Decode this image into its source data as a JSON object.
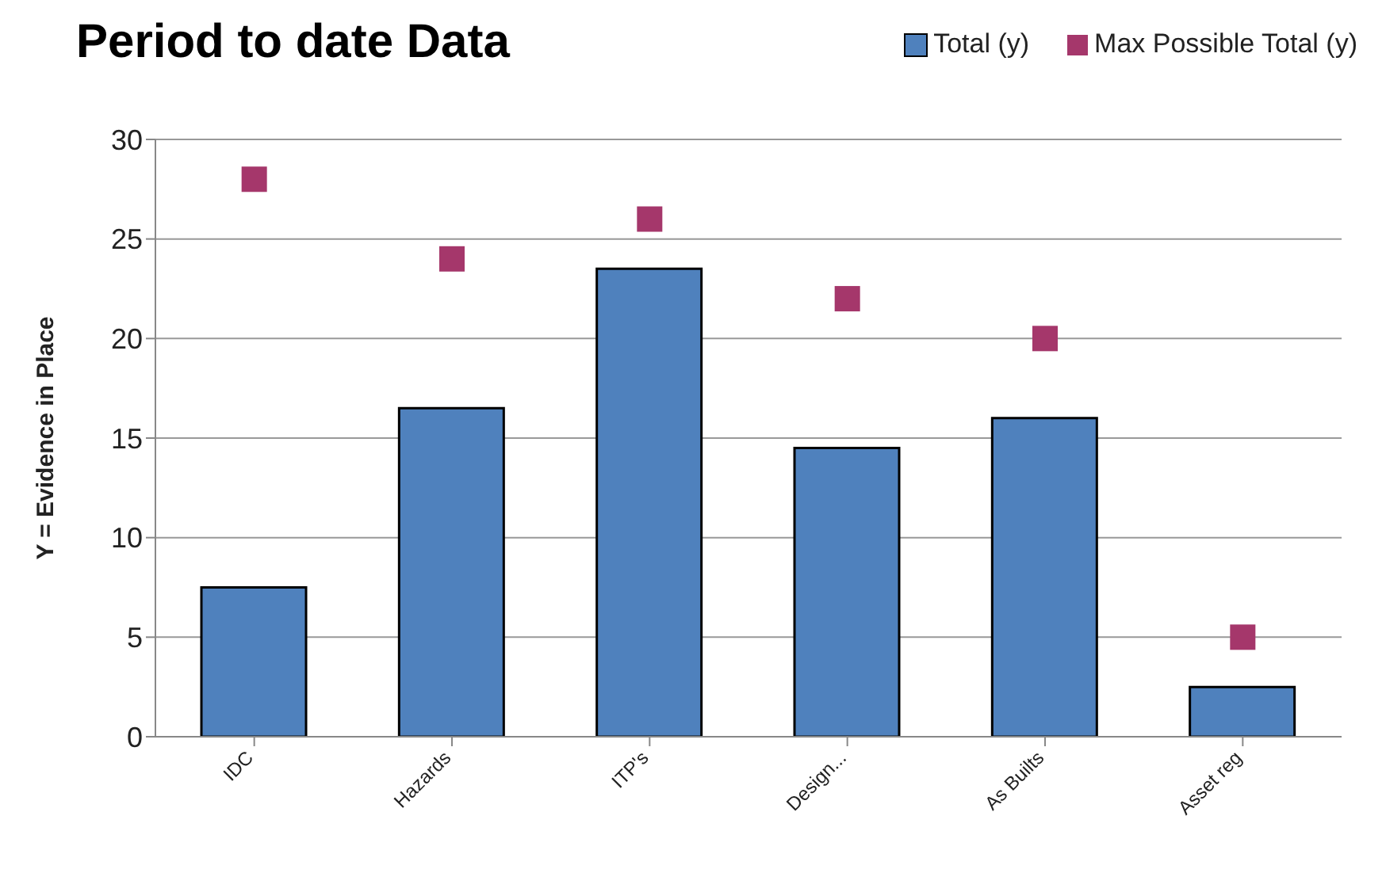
{
  "chart_data": {
    "type": "bar",
    "title": "Period to date Data",
    "ylabel": "Y = Evidence in Place",
    "categories": [
      "IDC",
      "Hazards",
      "ITP's",
      "Design...",
      "As Builts",
      "Asset reg"
    ],
    "series": [
      {
        "name": "Total (y)",
        "color": "#4f81bd",
        "values": [
          7.5,
          16.5,
          23.5,
          14.5,
          16,
          2.5
        ]
      },
      {
        "name": "Max Possible Total (y)",
        "type": "scatter",
        "color": "#a5376b",
        "marker": "square",
        "values": [
          28,
          24,
          26,
          22,
          20,
          5
        ]
      }
    ],
    "ylim": [
      0,
      30
    ],
    "yticks": [
      0,
      5,
      10,
      15,
      20,
      25,
      30
    ],
    "grid": "y",
    "legend": "top right"
  }
}
